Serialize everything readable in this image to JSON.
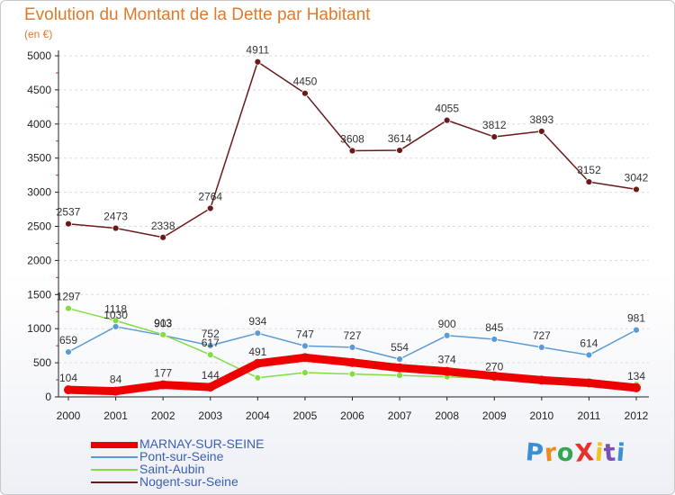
{
  "title": "Evolution du Montant de la Dette par Habitant",
  "subtitle": "(en €)",
  "logo": "ProXiti",
  "colors": {
    "title": "#e07a2c",
    "legend_text": "#3a5fb5",
    "grid": "#dddddd",
    "axis": "#222222"
  },
  "chart_data": {
    "type": "line",
    "x": [
      "2000",
      "2001",
      "2002",
      "2003",
      "2004",
      "2005",
      "2006",
      "2007",
      "2008",
      "2009",
      "2010",
      "2011",
      "2012"
    ],
    "ylim": [
      0,
      5000
    ],
    "yticks": [
      0,
      500,
      1000,
      1500,
      2000,
      2500,
      3000,
      3500,
      4000,
      4500,
      5000
    ],
    "grid": "horizontal-dashed",
    "legend_position": "bottom-left",
    "series": [
      {
        "name": "MARNAY-SUR-SEINE",
        "color": "#ee0000",
        "values": [
          104,
          84,
          177,
          144,
          491,
          576,
          505,
          425,
          374,
          306,
          246,
          205,
          134
        ],
        "labels": [
          "104",
          "84",
          "177",
          "144",
          "491",
          "",
          "",
          "",
          "374",
          "",
          "",
          "",
          "134"
        ]
      },
      {
        "name": "Pont-sur-Seine",
        "color": "#5b9bd5",
        "values": [
          659,
          1030,
          903,
          752,
          934,
          747,
          727,
          554,
          900,
          845,
          727,
          614,
          981
        ],
        "labels": [
          "659",
          "1030",
          "903",
          "752",
          "934",
          "747",
          "727",
          "554",
          "900",
          "845",
          "727",
          "614",
          "981"
        ]
      },
      {
        "name": "Saint-Aubin",
        "color": "#80dd44",
        "values": [
          1297,
          1118,
          913,
          617,
          280,
          356,
          335,
          315,
          294,
          270,
          230,
          195,
          181
        ],
        "labels": [
          "1297",
          "1118",
          "913",
          "617",
          "",
          "",
          "",
          "",
          "",
          "270",
          "",
          "",
          ""
        ]
      },
      {
        "name": "Nogent-sur-Seine",
        "color": "#6b1a1a",
        "values": [
          2537,
          2473,
          2338,
          2764,
          4911,
          4450,
          3608,
          3614,
          4055,
          3812,
          3893,
          3152,
          3042
        ],
        "labels": [
          "2537",
          "2473",
          "2338",
          "2764",
          "4911",
          "4450",
          "3608",
          "3614",
          "4055",
          "3812",
          "3893",
          "3152",
          "3042"
        ]
      }
    ]
  }
}
